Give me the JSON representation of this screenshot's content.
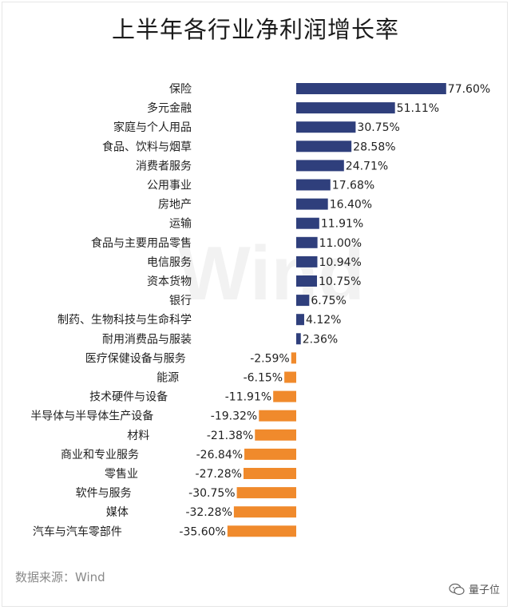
{
  "chart_data": {
    "type": "bar",
    "orientation": "horizontal",
    "title": "上半年各行业净利润增长率",
    "categories": [
      "保险",
      "多元金融",
      "家庭与个人用品",
      "食品、饮料与烟草",
      "消费者服务",
      "公用事业",
      "房地产",
      "运输",
      "食品与主要用品零售",
      "电信服务",
      "资本货物",
      "银行",
      "制药、生物科技与生命科学",
      "耐用消费品与服装",
      "医疗保健设备与服务",
      "能源",
      "技术硬件与设备",
      "半导体与半导体生产设备",
      "材料",
      "商业和专业服务",
      "零售业",
      "软件与服务",
      "媒体",
      "汽车与汽车零部件"
    ],
    "values": [
      77.6,
      51.11,
      30.75,
      28.58,
      24.71,
      17.68,
      16.4,
      11.91,
      11.0,
      10.94,
      10.75,
      6.75,
      4.12,
      2.36,
      -2.59,
      -6.15,
      -11.91,
      -19.32,
      -21.38,
      -26.84,
      -27.28,
      -30.75,
      -32.28,
      -35.6
    ],
    "value_labels": [
      "77.60%",
      "51.11%",
      "30.75%",
      "28.58%",
      "24.71%",
      "17.68%",
      "16.40%",
      "11.91%",
      "11.00%",
      "10.94%",
      "10.75%",
      "6.75%",
      "4.12%",
      "2.36%",
      "-2.59%",
      "-6.15%",
      "-11.91%",
      "-19.32%",
      "-21.38%",
      "-26.84%",
      "-27.28%",
      "-30.75%",
      "-32.28%",
      "-35.60%"
    ],
    "colors": {
      "positive": "#2f3f7c",
      "negative": "#f08a2c"
    },
    "watermark": "Wind"
  },
  "source": "数据来源：Wind",
  "brand": {
    "name": "量子位",
    "icon": "wechat-icon"
  }
}
